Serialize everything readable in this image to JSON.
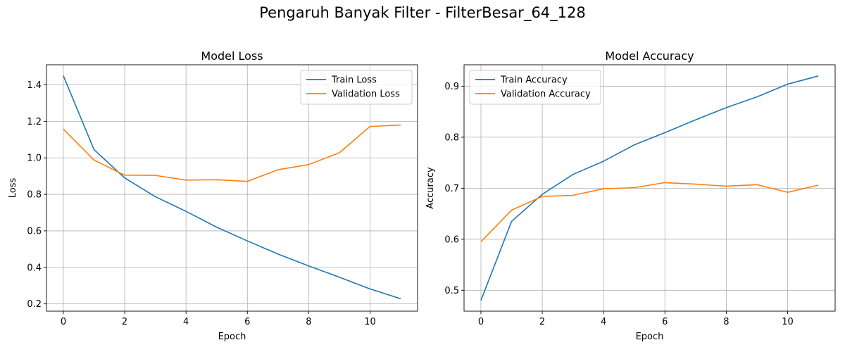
{
  "suptitle": "Pengaruh Banyak Filter - FilterBesar_64_128",
  "chart_data": [
    {
      "type": "line",
      "title": "Model Loss",
      "xlabel": "Epoch",
      "ylabel": "Loss",
      "x": [
        0,
        1,
        2,
        3,
        4,
        5,
        6,
        7,
        8,
        9,
        10,
        11
      ],
      "xlim": [
        -0.55,
        11.55
      ],
      "ylim": [
        0.16,
        1.51
      ],
      "xticks": [
        0,
        2,
        4,
        6,
        8,
        10
      ],
      "yticks": [
        0.2,
        0.4,
        0.6,
        0.8,
        1.0,
        1.2,
        1.4
      ],
      "ytick_labels": [
        "0.2",
        "0.4",
        "0.6",
        "0.8",
        "1.0",
        "1.2",
        "1.4"
      ],
      "grid": true,
      "legend_position": "upper right",
      "series": [
        {
          "name": "Train Loss",
          "color": "#1f77b4",
          "values": [
            1.45,
            1.045,
            0.89,
            0.787,
            0.707,
            0.62,
            0.545,
            0.473,
            0.408,
            0.346,
            0.282,
            0.228
          ]
        },
        {
          "name": "Validation Loss",
          "color": "#ff7f0e",
          "values": [
            1.158,
            0.988,
            0.905,
            0.904,
            0.878,
            0.88,
            0.871,
            0.935,
            0.963,
            1.028,
            1.172,
            1.18
          ]
        }
      ]
    },
    {
      "type": "line",
      "title": "Model Accuracy",
      "xlabel": "Epoch",
      "ylabel": "Accuracy",
      "x": [
        0,
        1,
        2,
        3,
        4,
        5,
        6,
        7,
        8,
        9,
        10,
        11
      ],
      "xlim": [
        -0.55,
        11.55
      ],
      "ylim": [
        0.459,
        0.942
      ],
      "xticks": [
        0,
        2,
        4,
        6,
        8,
        10
      ],
      "yticks": [
        0.5,
        0.6,
        0.7,
        0.8,
        0.9
      ],
      "ytick_labels": [
        "0.5",
        "0.6",
        "0.7",
        "0.8",
        "0.9"
      ],
      "grid": true,
      "legend_position": "upper left",
      "series": [
        {
          "name": "Train Accuracy",
          "color": "#1f77b4",
          "values": [
            0.48,
            0.635,
            0.688,
            0.727,
            0.753,
            0.785,
            0.809,
            0.834,
            0.858,
            0.879,
            0.904,
            0.92
          ]
        },
        {
          "name": "Validation Accuracy",
          "color": "#ff7f0e",
          "values": [
            0.595,
            0.657,
            0.684,
            0.686,
            0.699,
            0.701,
            0.711,
            0.708,
            0.704,
            0.707,
            0.692,
            0.706
          ]
        }
      ]
    }
  ]
}
